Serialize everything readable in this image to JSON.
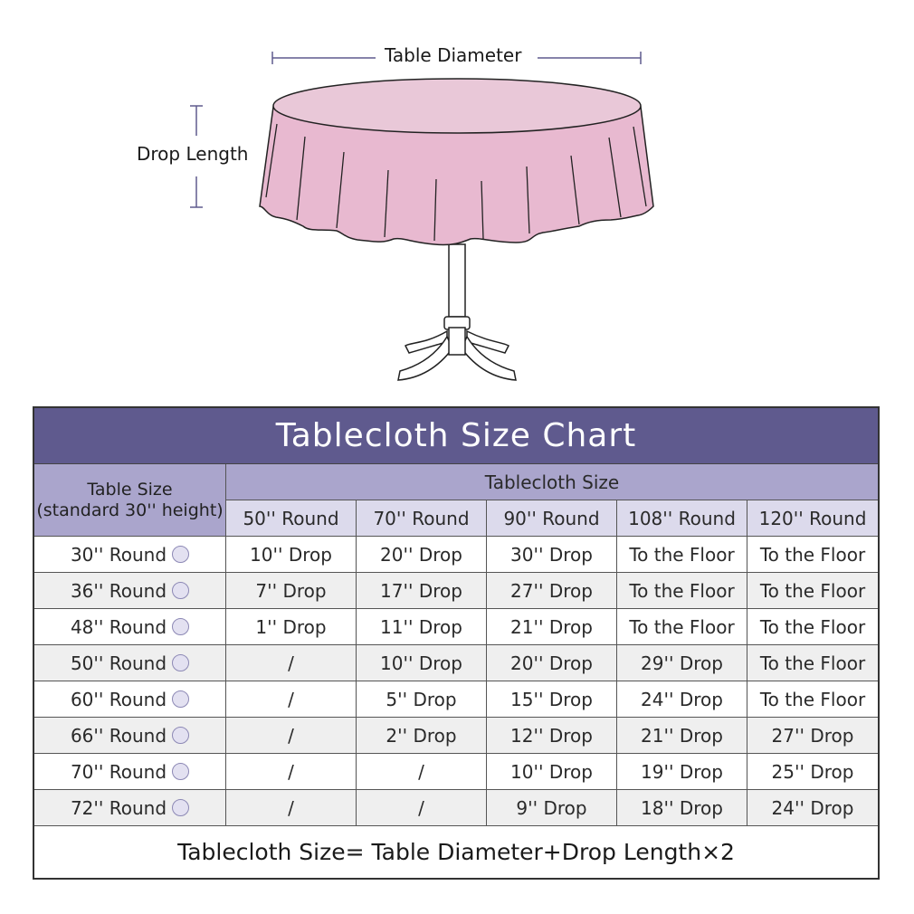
{
  "diagram": {
    "diameter_label": "Table Diameter",
    "drop_label": "Drop Length",
    "colors": {
      "cloth": "#e8b9d0",
      "cloth_top": "#e9c8d8",
      "dimension_line": "#5f5a8e"
    }
  },
  "chart": {
    "title": "Tablecloth Size Chart",
    "table_size_header": "Table Size",
    "table_size_subheader": "(standard 30''  height)",
    "tablecloth_size_header": "Tablecloth Size",
    "columns": [
      "50'' Round",
      "70'' Round",
      "90'' Round",
      "108'' Round",
      "120'' Round"
    ],
    "rows": [
      {
        "size": "30'' Round",
        "cells": [
          "10'' Drop",
          "20'' Drop",
          "30'' Drop",
          "To the Floor",
          "To the Floor"
        ]
      },
      {
        "size": "36'' Round",
        "cells": [
          "7'' Drop",
          "17'' Drop",
          "27'' Drop",
          "To the Floor",
          "To the Floor"
        ]
      },
      {
        "size": "48'' Round",
        "cells": [
          "1'' Drop",
          "11'' Drop",
          "21'' Drop",
          "To the Floor",
          "To the Floor"
        ]
      },
      {
        "size": "50'' Round",
        "cells": [
          "/",
          "10'' Drop",
          "20'' Drop",
          "29'' Drop",
          "To the Floor"
        ]
      },
      {
        "size": "60'' Round",
        "cells": [
          "/",
          "5'' Drop",
          "15'' Drop",
          "24'' Drop",
          "To the Floor"
        ]
      },
      {
        "size": "66'' Round",
        "cells": [
          "/",
          "2'' Drop",
          "12'' Drop",
          "21'' Drop",
          "27'' Drop"
        ]
      },
      {
        "size": "70'' Round",
        "cells": [
          "/",
          "/",
          "10'' Drop",
          "19'' Drop",
          "25'' Drop"
        ]
      },
      {
        "size": "72'' Round",
        "cells": [
          "/",
          "/",
          "9'' Drop",
          "18'' Drop",
          "24'' Drop"
        ]
      }
    ],
    "formula": "Tablecloth Size= Table Diameter+Drop Length×2",
    "colors": {
      "title_bg": "#5f5a8e",
      "header_bg": "#aaa5cc",
      "subheader_bg": "#dcdaec",
      "alt_row_bg": "#efefef"
    }
  }
}
